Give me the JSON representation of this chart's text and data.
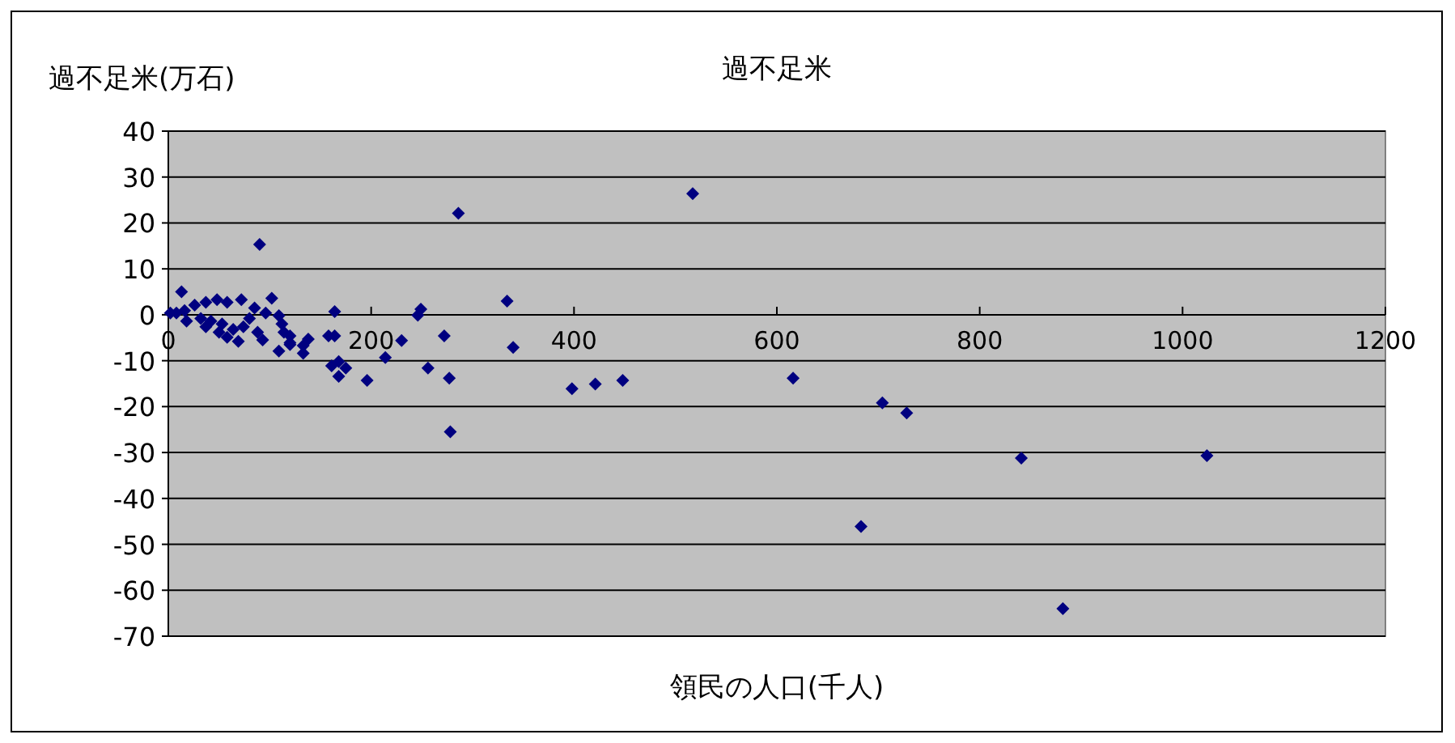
{
  "chart_data": {
    "type": "scatter",
    "title": "過不足米",
    "xlabel": "領民の人口(千人)",
    "ylabel": "過不足米(万石)",
    "color": "#000080",
    "marker": "diamond",
    "grid": "y",
    "xlim": [
      0,
      1200
    ],
    "ylim": [
      -70,
      40
    ],
    "xticks": [
      0,
      200,
      400,
      600,
      800,
      1000,
      1200
    ],
    "yticks": [
      -70,
      -60,
      -50,
      -40,
      -30,
      -20,
      -10,
      0,
      10,
      20,
      30,
      40
    ],
    "x": [
      517,
      286,
      334,
      340,
      398,
      421,
      448,
      616,
      704,
      728,
      278,
      277,
      272,
      256,
      249,
      246,
      230,
      214,
      196,
      164,
      164,
      158,
      168,
      161,
      175,
      168,
      138,
      133,
      133,
      120,
      120,
      683,
      841,
      882,
      1024,
      90,
      13,
      102,
      96,
      109,
      112,
      114,
      120,
      109,
      93,
      88,
      69,
      80,
      72,
      58,
      48,
      37,
      26,
      8,
      2,
      16,
      32,
      42,
      53,
      64,
      74,
      50,
      58,
      37,
      18,
      85
    ],
    "values": [
      26.4,
      22.1,
      3.0,
      -7.1,
      -16.1,
      -15.1,
      -14.3,
      -13.8,
      -19.2,
      -21.4,
      -25.5,
      -13.8,
      -4.6,
      -11.6,
      1.2,
      -0.1,
      -5.6,
      -9.3,
      -14.3,
      0.7,
      -4.6,
      -4.6,
      -10.2,
      -11.1,
      -11.6,
      -13.4,
      -5.3,
      -6.7,
      -8.4,
      -4.6,
      -6.5,
      -46.1,
      -31.2,
      -64.0,
      -30.7,
      15.3,
      5.0,
      3.6,
      0.4,
      -0.2,
      -2.0,
      -3.8,
      -6.1,
      -7.9,
      -5.5,
      -3.8,
      -5.8,
      -0.8,
      3.3,
      2.7,
      3.3,
      2.7,
      2.1,
      0.4,
      0.4,
      0.9,
      -0.8,
      -1.4,
      -2.0,
      -3.2,
      -2.6,
      -3.8,
      -4.9,
      -2.6,
      -1.4,
      1.5
    ]
  }
}
